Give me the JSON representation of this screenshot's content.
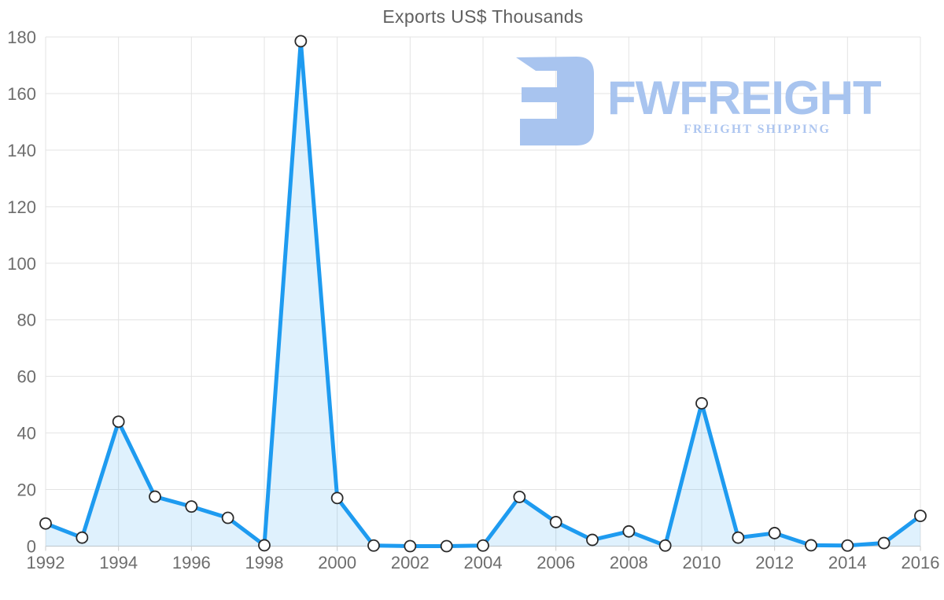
{
  "chart_data": {
    "type": "area",
    "title": "Exports US$ Thousands",
    "x": [
      1992,
      1993,
      1994,
      1995,
      1996,
      1997,
      1998,
      1999,
      2000,
      2001,
      2002,
      2003,
      2004,
      2005,
      2006,
      2007,
      2008,
      2009,
      2010,
      2011,
      2012,
      2013,
      2014,
      2015,
      2016
    ],
    "values": [
      8,
      3,
      44,
      17.5,
      14,
      10,
      0.3,
      178.5,
      17,
      0.2,
      0,
      0,
      0.2,
      17.4,
      8.5,
      2.2,
      5.2,
      0.2,
      50.5,
      3,
      4.6,
      0.3,
      0.2,
      1.1,
      10.7
    ],
    "xlabel": "",
    "ylabel": "",
    "ylim": [
      0,
      180
    ],
    "y_ticks": [
      0,
      20,
      40,
      60,
      80,
      100,
      120,
      140,
      160,
      180
    ],
    "x_tick_labels": [
      "1992",
      "1994",
      "1996",
      "1998",
      "2000",
      "2002",
      "2004",
      "2006",
      "2008",
      "2010",
      "2012",
      "2014",
      "2016"
    ],
    "grid": true,
    "legend": false,
    "colors": {
      "line": "#1e9bf0",
      "area_fill": "rgba(30,155,240,0.14)",
      "marker_fill": "#ffffff",
      "marker_stroke": "#2b2b2b",
      "gridline": "#e3e3e3",
      "axis_line": "#c9c9c9",
      "tick_label": "#6d6d6d",
      "title": "#606060"
    }
  },
  "logo": {
    "brand": "FWFREIGHT",
    "tagline": "FREIGHT SHIPPING",
    "brand_color": "#a8c4ef",
    "tagline_color": "#aec6f0",
    "icon": "fwfreight-mark"
  }
}
